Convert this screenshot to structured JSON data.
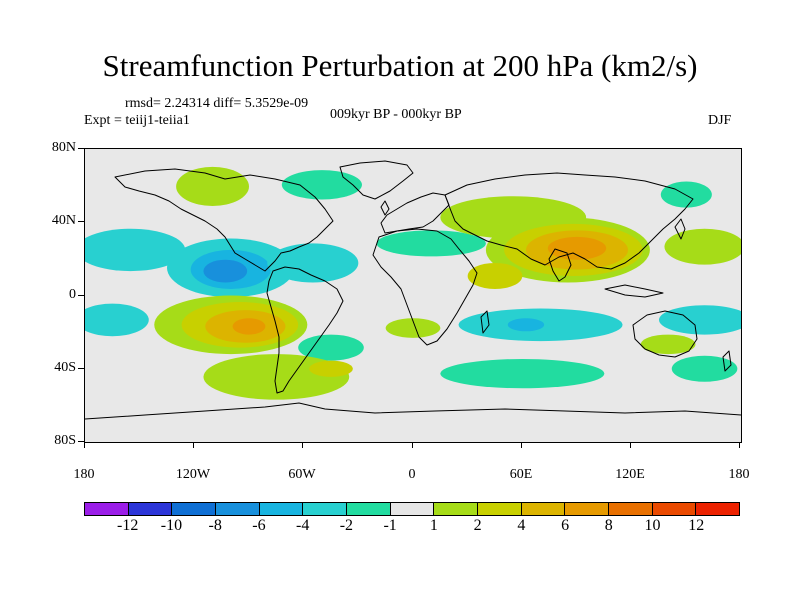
{
  "title": "Streamfunction Perturbation at 200 hPa (km2/s)",
  "stats": "rmsd= 2.24314 diff= 5.3529e-09",
  "experiment": "Expt = teiij1-teiia1",
  "period": "009kyr BP - 000kyr BP",
  "season": "DJF",
  "axes": {
    "lat_labels": [
      "80N",
      "40N",
      "0",
      "40S",
      "80S"
    ],
    "lon_labels": [
      "180",
      "120W",
      "60W",
      "0",
      "60E",
      "120E",
      "180"
    ]
  },
  "colorbar": {
    "colors": [
      "#9b1ee8",
      "#2c35d8",
      "#0f6fd4",
      "#1890dc",
      "#18b4e0",
      "#28d0d0",
      "#22dca0",
      "#e6e6e6",
      "#a6dc18",
      "#c8d000",
      "#dcb400",
      "#e69a00",
      "#e87000",
      "#ea4a00",
      "#ec2200"
    ],
    "labels": [
      "-12",
      "-10",
      "-8",
      "-6",
      "-4",
      "-2",
      "-1",
      "1",
      "2",
      "4",
      "6",
      "8",
      "10",
      "12"
    ]
  },
  "field_blobs": [
    {
      "lon": -155,
      "lat": 28,
      "rlon": 30,
      "rlat": 13,
      "color": "#28d0d0"
    },
    {
      "lon": -100,
      "lat": 17,
      "rlon": 35,
      "rlat": 18,
      "color": "#28d0d0"
    },
    {
      "lon": -100,
      "lat": 16,
      "rlon": 22,
      "rlat": 12,
      "color": "#18b4e0"
    },
    {
      "lon": -103,
      "lat": 15,
      "rlon": 12,
      "rlat": 7,
      "color": "#1890dc"
    },
    {
      "lon": -55,
      "lat": 20,
      "rlon": 25,
      "rlat": 12,
      "color": "#28d0d0"
    },
    {
      "lon": -110,
      "lat": 67,
      "rlon": 20,
      "rlat": 12,
      "color": "#a6dc18"
    },
    {
      "lon": -50,
      "lat": 68,
      "rlon": 22,
      "rlat": 9,
      "color": "#22dca0"
    },
    {
      "lon": 10,
      "lat": 32,
      "rlon": 30,
      "rlat": 8,
      "color": "#22dca0"
    },
    {
      "lon": 55,
      "lat": 48,
      "rlon": 40,
      "rlat": 13,
      "color": "#a6dc18"
    },
    {
      "lon": 85,
      "lat": 28,
      "rlon": 45,
      "rlat": 20,
      "color": "#a6dc18"
    },
    {
      "lon": 88,
      "lat": 28,
      "rlon": 38,
      "rlat": 16,
      "color": "#c8d000"
    },
    {
      "lon": 90,
      "lat": 28,
      "rlon": 28,
      "rlat": 12,
      "color": "#dcb400"
    },
    {
      "lon": 90,
      "lat": 29,
      "rlon": 16,
      "rlat": 7,
      "color": "#e69a00"
    },
    {
      "lon": 45,
      "lat": 12,
      "rlon": 15,
      "rlat": 8,
      "color": "#c8d000"
    },
    {
      "lon": 160,
      "lat": 30,
      "rlon": 22,
      "rlat": 11,
      "color": "#a6dc18"
    },
    {
      "lon": 150,
      "lat": 62,
      "rlon": 14,
      "rlat": 8,
      "color": "#22dca0"
    },
    {
      "lon": -100,
      "lat": -18,
      "rlon": 42,
      "rlat": 18,
      "color": "#a6dc18"
    },
    {
      "lon": -95,
      "lat": -18,
      "rlon": 32,
      "rlat": 14,
      "color": "#c8d000"
    },
    {
      "lon": -92,
      "lat": -19,
      "rlon": 22,
      "rlat": 10,
      "color": "#dcb400"
    },
    {
      "lon": -90,
      "lat": -19,
      "rlon": 9,
      "rlat": 5,
      "color": "#e69a00"
    },
    {
      "lon": -165,
      "lat": -15,
      "rlon": 20,
      "rlat": 10,
      "color": "#28d0d0"
    },
    {
      "lon": -45,
      "lat": -32,
      "rlon": 18,
      "rlat": 8,
      "color": "#22dca0"
    },
    {
      "lon": 0,
      "lat": -20,
      "rlon": 15,
      "rlat": 6,
      "color": "#a6dc18"
    },
    {
      "lon": 70,
      "lat": -18,
      "rlon": 45,
      "rlat": 10,
      "color": "#28d0d0"
    },
    {
      "lon": 62,
      "lat": -18,
      "rlon": 10,
      "rlat": 4,
      "color": "#18b4e0"
    },
    {
      "lon": 160,
      "lat": -15,
      "rlon": 25,
      "rlat": 9,
      "color": "#28d0d0"
    },
    {
      "lon": 140,
      "lat": -30,
      "rlon": 15,
      "rlat": 6,
      "color": "#a6dc18"
    },
    {
      "lon": -75,
      "lat": -50,
      "rlon": 40,
      "rlat": 14,
      "color": "#a6dc18"
    },
    {
      "lon": -45,
      "lat": -45,
      "rlon": 12,
      "rlat": 5,
      "color": "#c8d000"
    },
    {
      "lon": 60,
      "lat": -48,
      "rlon": 45,
      "rlat": 9,
      "color": "#22dca0"
    },
    {
      "lon": 160,
      "lat": -45,
      "rlon": 18,
      "rlat": 8,
      "color": "#22dca0"
    }
  ]
}
